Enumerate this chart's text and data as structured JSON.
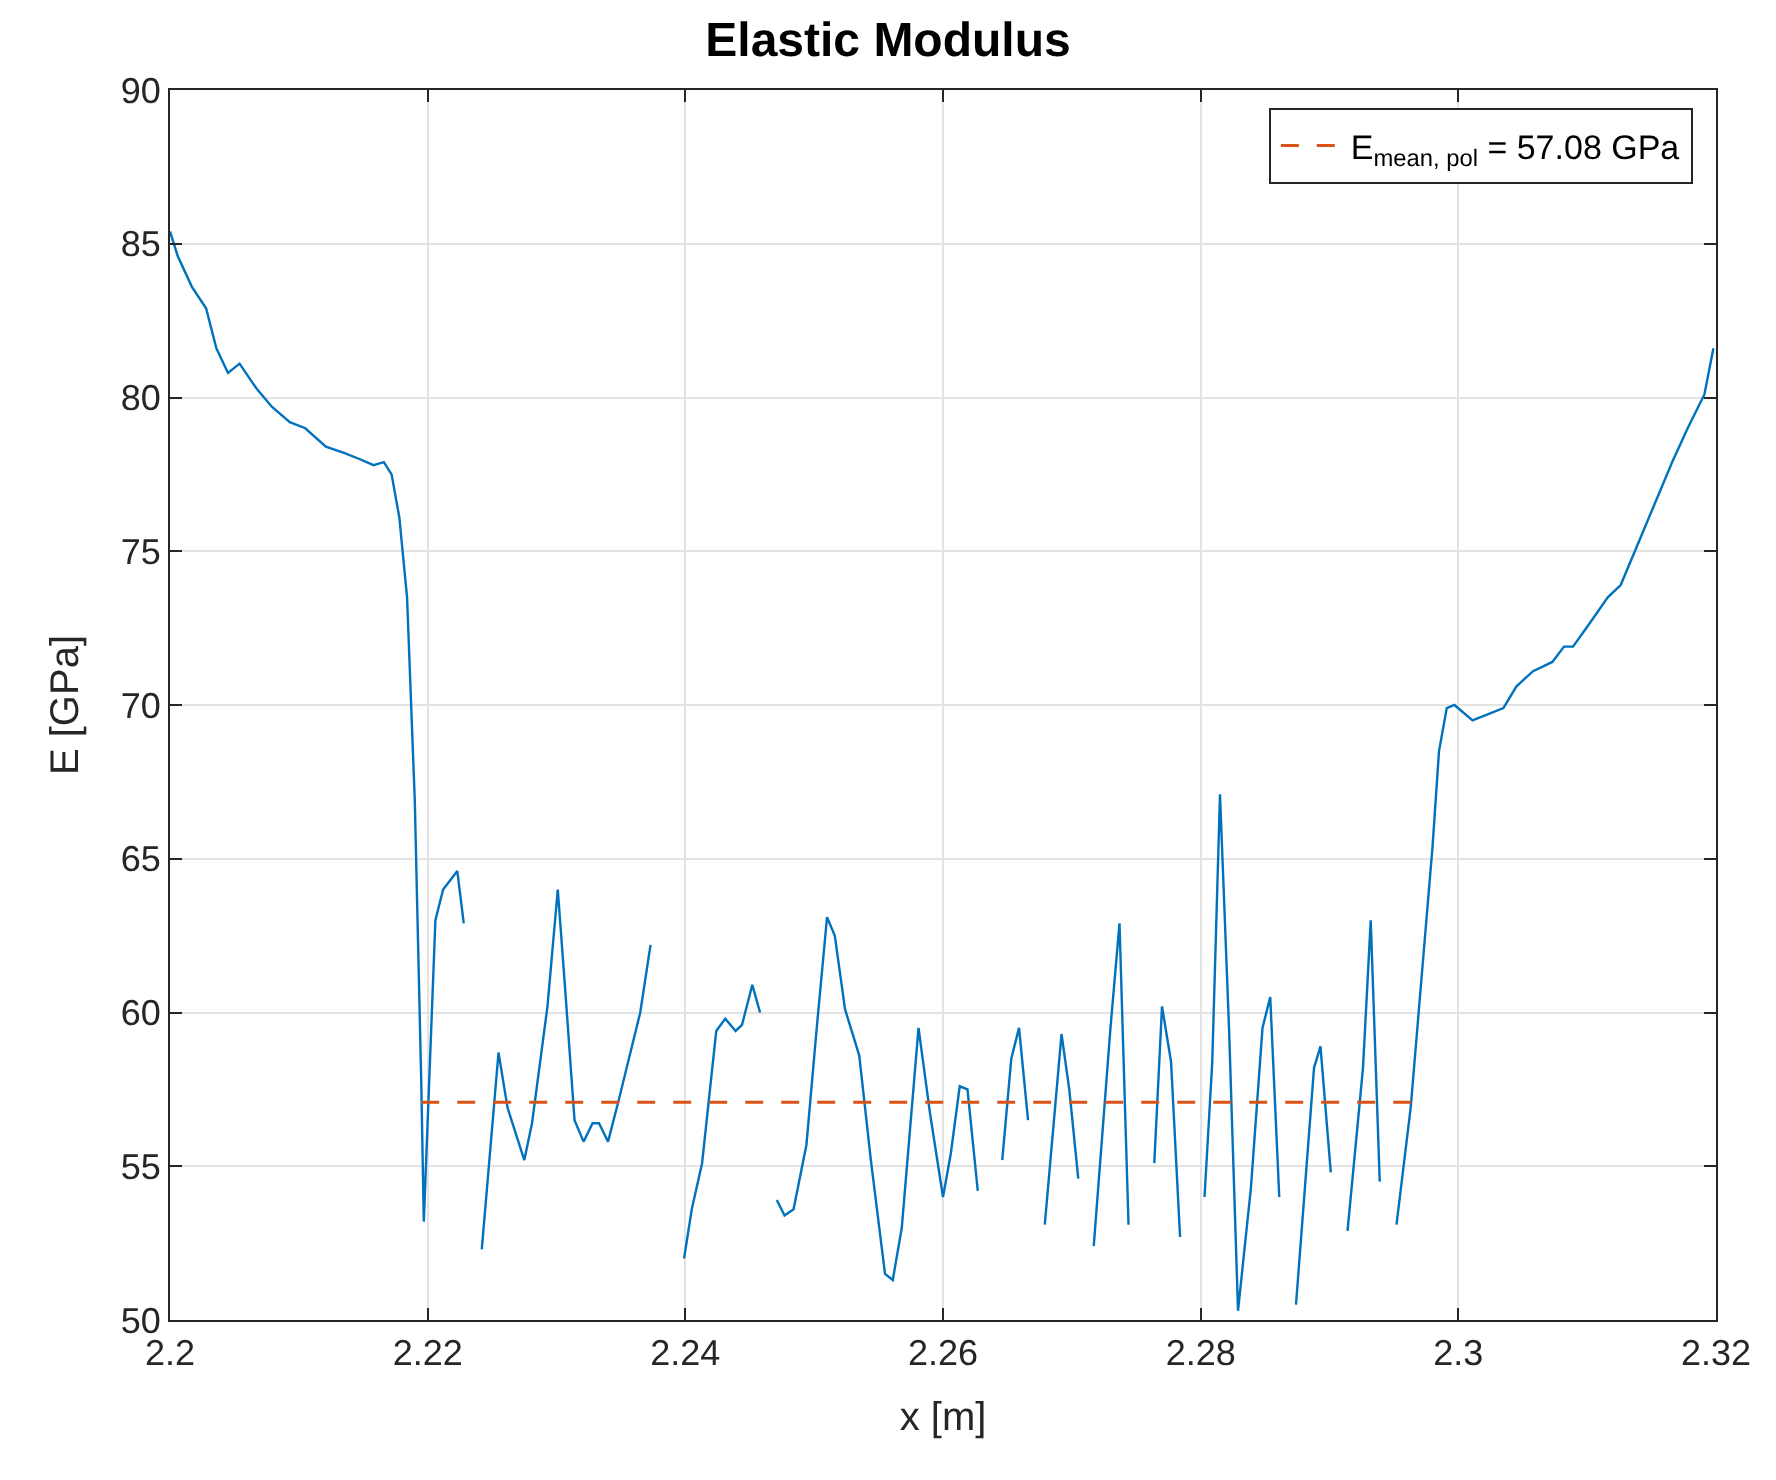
{
  "chart_data": {
    "type": "line",
    "title": "Elastic Modulus",
    "xlabel": "x [m]",
    "ylabel": "E [GPa]",
    "xlim": [
      2.2,
      2.32
    ],
    "xticks": [
      2.2,
      2.22,
      2.24,
      2.26,
      2.28,
      2.3,
      2.32
    ],
    "ylim": [
      50,
      90
    ],
    "yticks": [
      50,
      55,
      60,
      65,
      70,
      75,
      80,
      85,
      90
    ],
    "grid": true,
    "legend": "top right",
    "line_style": "solid",
    "marker": "none",
    "series": [
      {
        "color": "#0072bd",
        "x": [
          2.2,
          2.2006,
          2.2017,
          2.2028,
          2.2036,
          2.2045,
          2.2054,
          2.2067,
          2.2079,
          2.2093,
          2.2105,
          2.2121,
          2.2135,
          2.2147,
          2.2158,
          2.2166,
          2.2172,
          2.2178,
          2.2184,
          2.219,
          2.2195,
          2.2197,
          2.2206,
          2.2212,
          2.2223,
          2.2228
        ],
        "values": [
          85.4,
          84.6,
          83.6,
          82.9,
          81.6,
          80.8,
          81.1,
          80.3,
          79.7,
          79.2,
          79.0,
          78.4,
          78.2,
          78.0,
          77.8,
          77.9,
          77.5,
          76.1,
          73.5,
          66.9,
          57.8,
          53.2,
          63.0,
          64.0,
          64.6,
          62.9
        ]
      },
      {
        "color": "#0072bd",
        "x": [
          2.2242,
          2.2255,
          2.2262,
          2.2275,
          2.2281,
          2.2293,
          2.2301,
          2.2307,
          2.2314,
          2.2321,
          2.2328,
          2.2333,
          2.234,
          2.2348,
          2.2365,
          2.2373
        ],
        "values": [
          52.3,
          58.7,
          56.9,
          55.2,
          56.4,
          60.2,
          64.0,
          60.6,
          56.5,
          55.8,
          56.4,
          56.4,
          55.8,
          57.1,
          60.0,
          62.2
        ]
      },
      {
        "color": "#0072bd",
        "x": [
          2.2399,
          2.2405,
          2.2413,
          2.2424,
          2.2431,
          2.2439,
          2.2444,
          2.2452,
          2.2458
        ],
        "values": [
          52.0,
          53.6,
          55.1,
          59.4,
          59.8,
          59.4,
          59.6,
          60.9,
          60.0
        ]
      },
      {
        "color": "#0072bd",
        "x": [
          2.2471,
          2.2477,
          2.2484,
          2.2494,
          2.2502,
          2.251,
          2.2516,
          2.2524,
          2.2535,
          2.2544,
          2.2555,
          2.2561,
          2.2568,
          2.2581,
          2.259,
          2.26,
          2.2606,
          2.2613,
          2.2619,
          2.2627
        ],
        "values": [
          53.9,
          53.4,
          53.6,
          55.7,
          59.5,
          63.1,
          62.5,
          60.1,
          58.6,
          55.2,
          51.5,
          51.3,
          53.0,
          59.5,
          56.7,
          54.0,
          55.4,
          57.6,
          57.5,
          54.2
        ]
      },
      {
        "color": "#0072bd",
        "x": [
          2.2646,
          2.2653,
          2.2659,
          2.2666
        ],
        "values": [
          55.2,
          58.5,
          59.5,
          56.5
        ]
      },
      {
        "color": "#0072bd",
        "x": [
          2.2679,
          2.2692,
          2.2698,
          2.2705
        ],
        "values": [
          53.1,
          59.3,
          57.5,
          54.6
        ]
      },
      {
        "color": "#0072bd",
        "x": [
          2.2717,
          2.273,
          2.2737,
          2.2744
        ],
        "values": [
          52.4,
          59.5,
          62.9,
          53.1
        ]
      },
      {
        "color": "#0072bd",
        "x": [
          2.2764,
          2.277,
          2.2777,
          2.2784
        ],
        "values": [
          55.1,
          60.2,
          58.4,
          52.7
        ]
      },
      {
        "color": "#0072bd",
        "x": [
          2.2803,
          2.2809,
          2.2815,
          2.2822,
          2.2829,
          2.2839,
          2.2848,
          2.2854,
          2.2861
        ],
        "values": [
          54.0,
          58.4,
          67.1,
          59.5,
          50.3,
          54.3,
          59.5,
          60.5,
          54.0
        ]
      },
      {
        "color": "#0072bd",
        "x": [
          2.2874,
          2.2888,
          2.2893,
          2.2901
        ],
        "values": [
          50.5,
          58.2,
          58.9,
          54.8
        ]
      },
      {
        "color": "#0072bd",
        "x": [
          2.2914,
          2.2926,
          2.2932,
          2.2939
        ],
        "values": [
          52.9,
          58.2,
          63.0,
          54.5
        ]
      },
      {
        "color": "#0072bd",
        "x": [
          2.2952,
          2.2963,
          2.298,
          2.2985,
          2.2991,
          2.2997,
          2.3011,
          2.3035,
          2.3045,
          2.3058,
          2.3073,
          2.3082,
          2.3089,
          2.3101,
          2.3116,
          2.3126,
          2.3138,
          2.315,
          2.3166,
          2.3178,
          2.3191,
          2.3198
        ],
        "values": [
          53.1,
          56.9,
          65.4,
          68.5,
          69.9,
          70.0,
          69.5,
          69.9,
          70.6,
          71.1,
          71.4,
          71.9,
          71.9,
          72.6,
          73.5,
          73.9,
          75.1,
          76.3,
          77.9,
          79.0,
          80.1,
          81.6
        ]
      },
      {
        "name": "E$_{mean, pol}$ = 57.08 GPa",
        "color": "#d95319",
        "line_style": "dashed",
        "x": [
          2.2195,
          2.2965
        ],
        "values": [
          57.08,
          57.08
        ]
      }
    ]
  }
}
